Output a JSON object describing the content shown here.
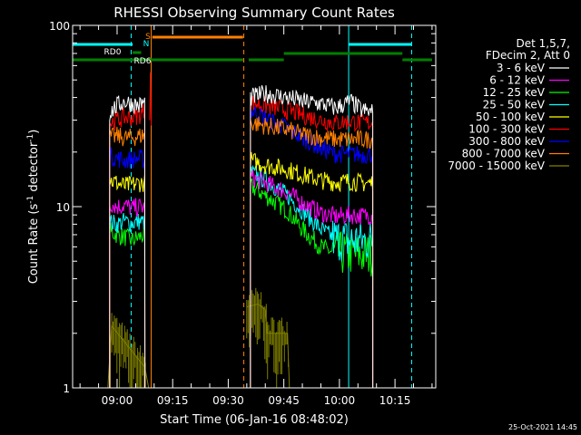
{
  "chart_data": {
    "type": "line",
    "title": "RHESSI Observing Summary Count Rates",
    "xlabel": "Start Time (06-Jan-16 08:48:02)",
    "ylabel_main": "Count Rate (s",
    "ylabel_sup": "-1",
    "ylabel_end": " detector",
    "ylabel_close": ")",
    "yscale": "log",
    "ylim": [
      1,
      100
    ],
    "xlim_minutes": [
      0,
      98
    ],
    "y_ticks": [
      {
        "value": 1,
        "label": "1"
      },
      {
        "value": 10,
        "label": "10"
      },
      {
        "value": 100,
        "label": "100"
      }
    ],
    "x_ticks": [
      {
        "minute": 12,
        "label": "09:00"
      },
      {
        "minute": 27,
        "label": "09:15"
      },
      {
        "minute": 42,
        "label": "09:30"
      },
      {
        "minute": 57,
        "label": "09:45"
      },
      {
        "minute": 72,
        "label": "10:00"
      },
      {
        "minute": 87,
        "label": "10:15"
      }
    ],
    "legend_header": [
      "Det 1,5,7,",
      "FDecim 2, Att 0"
    ],
    "series": [
      {
        "name": "3 - 6 keV",
        "color": "#ffffff",
        "seg1": [
          [
            10,
            33
          ],
          [
            12,
            36
          ],
          [
            14,
            38
          ],
          [
            16,
            37
          ],
          [
            18,
            36
          ],
          [
            19.5,
            38
          ]
        ],
        "seg2": [
          [
            48,
            40
          ],
          [
            52,
            42
          ],
          [
            58,
            40
          ],
          [
            62,
            38
          ],
          [
            67,
            37
          ],
          [
            71,
            35
          ],
          [
            75,
            38
          ],
          [
            78,
            34
          ],
          [
            81,
            33
          ]
        ]
      },
      {
        "name": "6 - 12 keV",
        "color": "#ff00ff",
        "seg1": [
          [
            10,
            10.5
          ],
          [
            12,
            10
          ],
          [
            14,
            10.2
          ],
          [
            16,
            9.8
          ],
          [
            18,
            10
          ],
          [
            19.5,
            9.8
          ]
        ],
        "seg2": [
          [
            48,
            14.5
          ],
          [
            52,
            13.5
          ],
          [
            58,
            12
          ],
          [
            62,
            10.5
          ],
          [
            67,
            9.2
          ],
          [
            71,
            8.8
          ],
          [
            75,
            9
          ],
          [
            78,
            8.9
          ],
          [
            81,
            9
          ]
        ]
      },
      {
        "name": "12 - 25 keV",
        "color": "#00ff00",
        "seg1": [
          [
            10,
            7.3
          ],
          [
            12,
            7
          ],
          [
            14,
            6.8
          ],
          [
            16,
            6.5
          ],
          [
            18,
            6.8
          ],
          [
            19.5,
            7
          ]
        ],
        "seg2": [
          [
            48,
            13
          ],
          [
            52,
            11.5
          ],
          [
            58,
            9.5
          ],
          [
            62,
            7.5
          ],
          [
            67,
            6
          ],
          [
            71,
            5.5
          ],
          [
            75,
            5.5
          ],
          [
            78,
            5.4
          ],
          [
            81,
            5.5
          ]
        ]
      },
      {
        "name": "25 - 50 keV",
        "color": "#00ffff",
        "seg1": [
          [
            10,
            8.2
          ],
          [
            12,
            8
          ],
          [
            14,
            8.3
          ],
          [
            16,
            8.1
          ],
          [
            18,
            8.3
          ],
          [
            19.5,
            8.2
          ]
        ],
        "seg2": [
          [
            48,
            15.5
          ],
          [
            52,
            14
          ],
          [
            58,
            11.5
          ],
          [
            62,
            9.5
          ],
          [
            67,
            7.5
          ],
          [
            71,
            6.6
          ],
          [
            75,
            6.5
          ],
          [
            78,
            6.5
          ],
          [
            81,
            6.5
          ]
        ]
      },
      {
        "name": "50 - 100 keV",
        "color": "#ffff00",
        "seg1": [
          [
            10,
            14
          ],
          [
            12,
            13.5
          ],
          [
            14,
            13
          ],
          [
            16,
            13.2
          ],
          [
            18,
            13.5
          ],
          [
            19.5,
            13.5
          ]
        ],
        "seg2": [
          [
            48,
            18
          ],
          [
            52,
            17
          ],
          [
            58,
            16
          ],
          [
            62,
            15
          ],
          [
            67,
            14
          ],
          [
            71,
            13.6
          ],
          [
            75,
            13.8
          ],
          [
            78,
            13.5
          ],
          [
            81,
            13.5
          ]
        ]
      },
      {
        "name": "100 - 300 keV",
        "color": "#ff0000",
        "seg1": [
          [
            10,
            29
          ],
          [
            12,
            30
          ],
          [
            14,
            31
          ],
          [
            16,
            31
          ],
          [
            18,
            32
          ],
          [
            19.5,
            34
          ]
        ],
        "seg2": [
          [
            48,
            38
          ],
          [
            52,
            36
          ],
          [
            58,
            34
          ],
          [
            62,
            32
          ],
          [
            67,
            30
          ],
          [
            71,
            29
          ],
          [
            75,
            29.5
          ],
          [
            78,
            29
          ],
          [
            81,
            29
          ]
        ]
      },
      {
        "name": "300 - 800 keV",
        "color": "#0000ff",
        "seg1": [
          [
            10,
            19
          ],
          [
            12,
            18.5
          ],
          [
            14,
            18
          ],
          [
            16,
            18.2
          ],
          [
            18,
            18.5
          ],
          [
            19.5,
            18
          ]
        ],
        "seg2": [
          [
            48,
            34
          ],
          [
            52,
            31
          ],
          [
            58,
            27
          ],
          [
            62,
            24
          ],
          [
            67,
            21
          ],
          [
            71,
            19.5
          ],
          [
            75,
            19.5
          ],
          [
            78,
            19.3
          ],
          [
            81,
            19.5
          ]
        ]
      },
      {
        "name": "800 - 7000 keV",
        "color": "#ff8000",
        "seg1": [
          [
            10,
            24
          ],
          [
            12,
            24.5
          ],
          [
            14,
            24
          ],
          [
            16,
            24
          ],
          [
            18,
            24.5
          ],
          [
            19.5,
            25
          ]
        ],
        "seg2": [
          [
            48,
            29
          ],
          [
            52,
            28
          ],
          [
            58,
            26.5
          ],
          [
            62,
            25
          ],
          [
            67,
            24
          ],
          [
            71,
            23.5
          ],
          [
            75,
            23.5
          ],
          [
            78,
            23.5
          ],
          [
            81,
            23.5
          ]
        ]
      },
      {
        "name": "7000 - 15000 keV",
        "color": "#808000",
        "seg1": [
          [
            9.5,
            1
          ],
          [
            10.5,
            2.2
          ],
          [
            19.5,
            1.3
          ],
          [
            20.5,
            1
          ]
        ],
        "seg2": [
          [
            47,
            2.8
          ],
          [
            50,
            2.9
          ],
          [
            52,
            2.7
          ],
          [
            52.5,
            2
          ],
          [
            55,
            2
          ],
          [
            58,
            2
          ],
          [
            58.5,
            1
          ]
        ]
      }
    ],
    "state_bars": [
      {
        "label": "S",
        "color": "#ff8000"
      },
      {
        "label": "N",
        "color": "#00ffff"
      },
      {
        "label": "RD0",
        "color": "#008000"
      },
      {
        "label": "RD6",
        "color": "#008000"
      }
    ],
    "annotations": {
      "timestamp": "25-Oct-2021 14:45"
    }
  }
}
